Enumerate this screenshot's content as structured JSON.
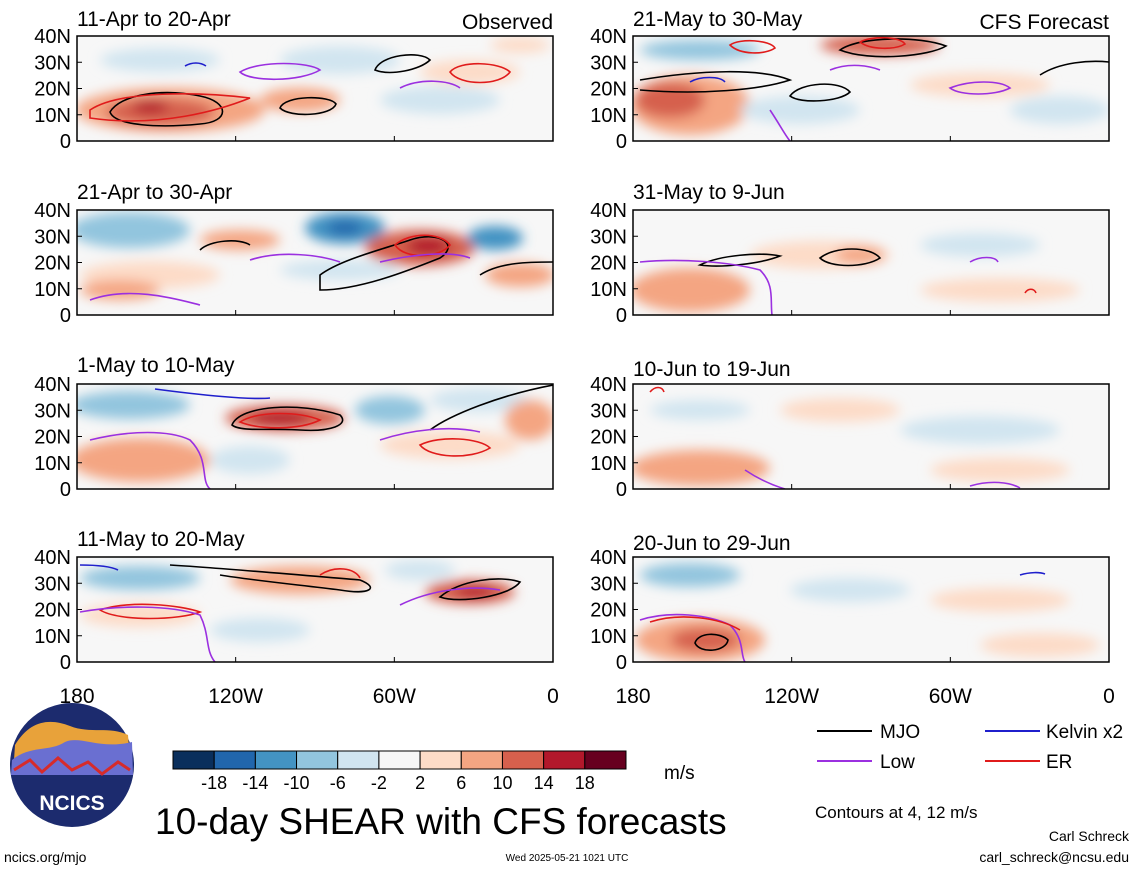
{
  "chart_data": {
    "type": "heatmap",
    "title": "10-day SHEAR with CFS forecasts",
    "units": "m/s",
    "contour_note": "Contours at 4, 12 m/s",
    "y_ticks": [
      "40N",
      "30N",
      "20N",
      "10N",
      "0"
    ],
    "x_ticks": [
      "180",
      "120W",
      "60W",
      "0"
    ],
    "ylim_degN": [
      0,
      40
    ],
    "xlim_deg_lon": [
      -180,
      0
    ],
    "colorbar": {
      "levels": [
        "-18",
        "-14",
        "-10",
        "-6",
        "-2",
        "2",
        "6",
        "10",
        "14",
        "18"
      ],
      "colors": [
        "#0a2f5c",
        "#2166ac",
        "#4393c3",
        "#92c5de",
        "#d1e5f0",
        "#f7f7f7",
        "#fddbc7",
        "#f4a582",
        "#d6604d",
        "#b2182b",
        "#67001f"
      ]
    },
    "legend": [
      {
        "label": "MJO",
        "color": "#000000"
      },
      {
        "label": "Kelvin x2",
        "color": "#1f1fcc"
      },
      {
        "label": "Low",
        "color": "#9b30e0"
      },
      {
        "label": "ER",
        "color": "#e01b1b"
      }
    ],
    "panels": [
      {
        "period": "11-Apr to 20-Apr",
        "tag": "Observed"
      },
      {
        "period": "21-Apr to 30-Apr",
        "tag": ""
      },
      {
        "period": "1-May to 10-May",
        "tag": ""
      },
      {
        "period": "11-May to 20-May",
        "tag": ""
      },
      {
        "period": "21-May to 30-May",
        "tag": "CFS Forecast"
      },
      {
        "period": "31-May to 9-Jun",
        "tag": ""
      },
      {
        "period": "10-Jun to 19-Jun",
        "tag": ""
      },
      {
        "period": "20-Jun to 29-Jun",
        "tag": ""
      }
    ]
  },
  "footer": {
    "logo_text": "NCICS",
    "url": "ncics.org/mjo",
    "timestamp": "Wed 2025-05-21 1021 UTC",
    "author": "Carl Schreck",
    "email": "carl_schreck@ncsu.edu"
  }
}
